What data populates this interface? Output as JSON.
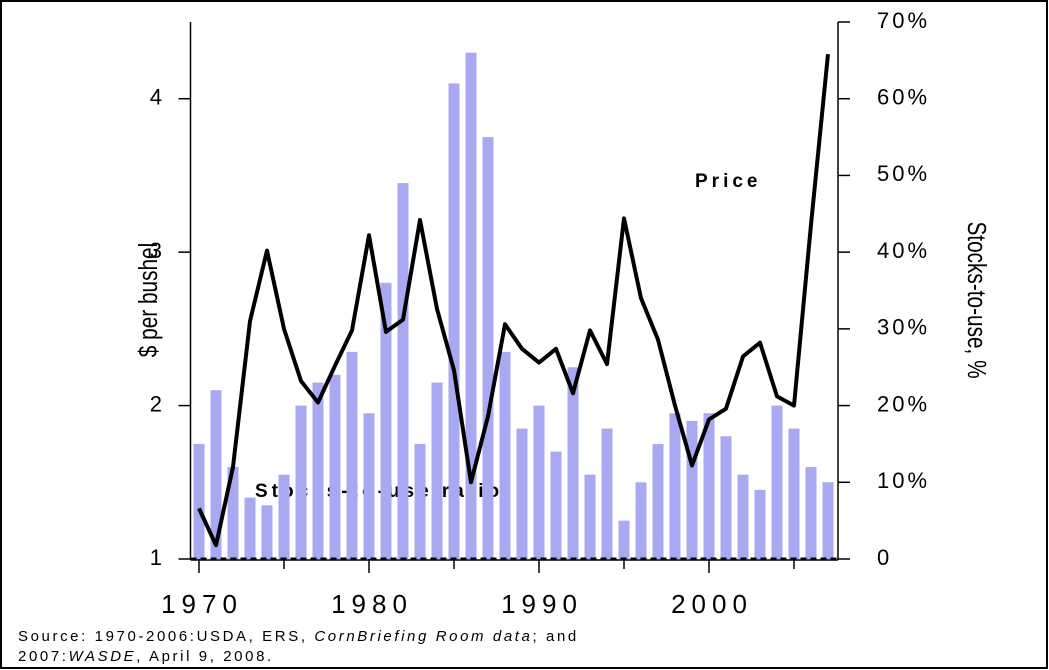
{
  "chart_data": {
    "type": "bar-line",
    "x": [
      1970,
      1971,
      1972,
      1973,
      1974,
      1975,
      1976,
      1977,
      1978,
      1979,
      1980,
      1981,
      1982,
      1983,
      1984,
      1985,
      1986,
      1987,
      1988,
      1989,
      1990,
      1991,
      1992,
      1993,
      1994,
      1995,
      1996,
      1997,
      1998,
      1999,
      2000,
      2001,
      2002,
      2003,
      2004,
      2005,
      2006,
      2007
    ],
    "xlim": [
      1969.5,
      2007.5
    ],
    "xticks": [
      1970,
      1980,
      1990,
      2000
    ],
    "xminor_ticks": [
      1975,
      1985,
      1995,
      2005
    ],
    "ylabel": "$ per bushel",
    "ylim": [
      1,
      4.5
    ],
    "yticks": [
      1,
      2,
      3,
      4
    ],
    "y2label": "Stocks-to-use, %",
    "y2lim": [
      0,
      70
    ],
    "y2ticks": [
      {
        "value": 0,
        "label": "0"
      },
      {
        "value": 10,
        "label": "10%"
      },
      {
        "value": 20,
        "label": "20%"
      },
      {
        "value": 30,
        "label": "30%"
      },
      {
        "value": 40,
        "label": "40%"
      },
      {
        "value": 50,
        "label": "50%"
      },
      {
        "value": 60,
        "label": "60%"
      },
      {
        "value": 70,
        "label": "70%"
      }
    ],
    "series": [
      {
        "name": "Stocks-to-use ratio",
        "type": "bar",
        "axis": "y2",
        "color": "#a9a9f2",
        "values": [
          15,
          22,
          12,
          8,
          7,
          11,
          20,
          23,
          24,
          27,
          19,
          36,
          49,
          15,
          23,
          62,
          66,
          55,
          27,
          17,
          20,
          14,
          25,
          11,
          17,
          5,
          10,
          15,
          19,
          18,
          19,
          16,
          11,
          9,
          20,
          17,
          12,
          10
        ]
      },
      {
        "name": "Price",
        "type": "line",
        "axis": "y",
        "color": "#000000",
        "values": [
          1.33,
          1.09,
          1.6,
          2.55,
          3.01,
          2.5,
          2.16,
          2.02,
          2.26,
          2.49,
          3.11,
          2.48,
          2.56,
          3.21,
          2.63,
          2.23,
          1.5,
          1.93,
          2.53,
          2.37,
          2.28,
          2.37,
          2.08,
          2.49,
          2.27,
          3.22,
          2.7,
          2.43,
          2.0,
          1.61,
          1.91,
          1.98,
          2.32,
          2.41,
          2.06,
          2.0,
          3.18,
          4.29
        ]
      }
    ],
    "source": [
      [
        {
          "text": "Source: 1970-2006:USDA, ERS, ",
          "italic": false
        },
        {
          "text": "CornBriefing Room data",
          "italic": true
        },
        {
          "text": "; and",
          "italic": false
        }
      ],
      [
        {
          "text": "2007:",
          "italic": false
        },
        {
          "text": "WASDE",
          "italic": true
        },
        {
          "text": ", April 9, 2008.",
          "italic": false
        }
      ]
    ]
  }
}
